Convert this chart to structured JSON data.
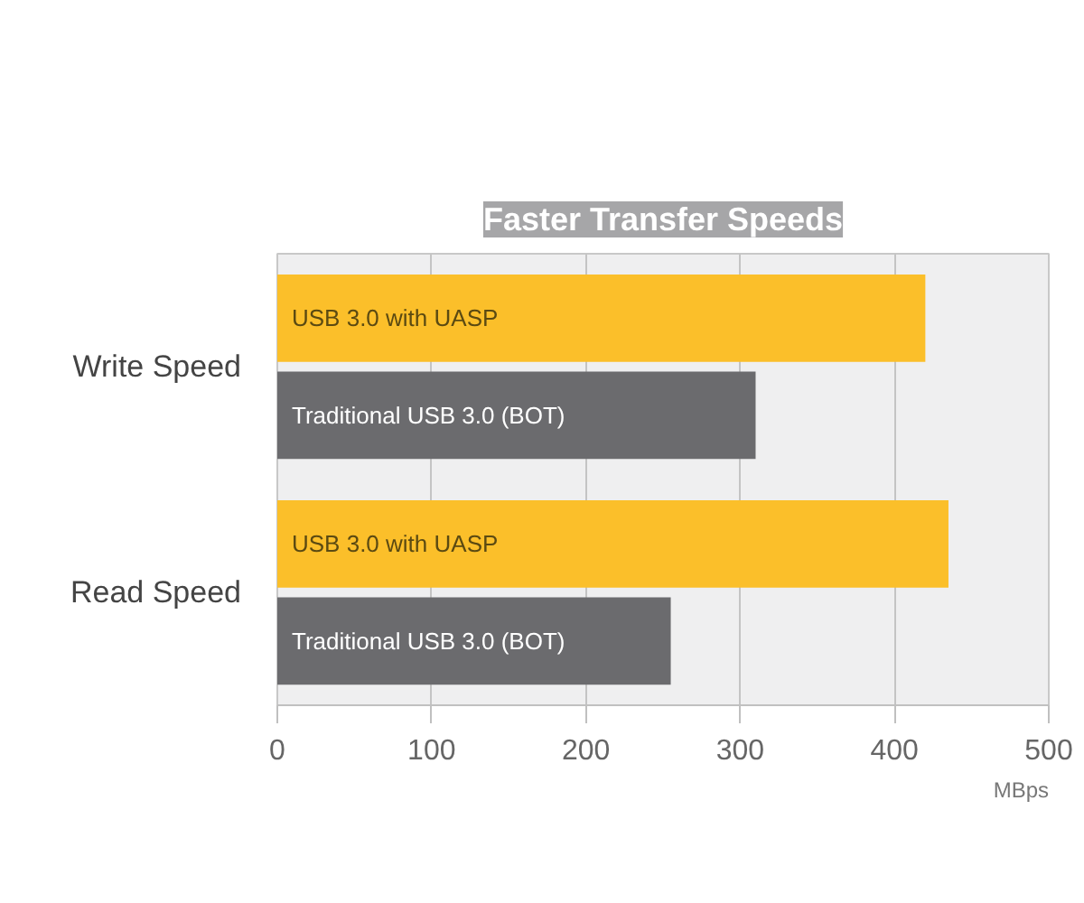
{
  "chart_data": {
    "type": "bar",
    "orientation": "horizontal",
    "title": "Faster Transfer Speeds",
    "xlabel": "MBps",
    "categories": [
      "Write Speed",
      "Read Speed"
    ],
    "series": [
      {
        "name": "USB 3.0 with UASP",
        "color": "#fbbf2a",
        "values": [
          420,
          435
        ]
      },
      {
        "name": "Traditional USB 3.0 (BOT)",
        "color": "#6b6b6e",
        "values": [
          310,
          255
        ]
      }
    ],
    "xlim": [
      0,
      500
    ],
    "xticks": [
      0,
      100,
      200,
      300,
      400,
      500
    ],
    "grid": "x"
  }
}
